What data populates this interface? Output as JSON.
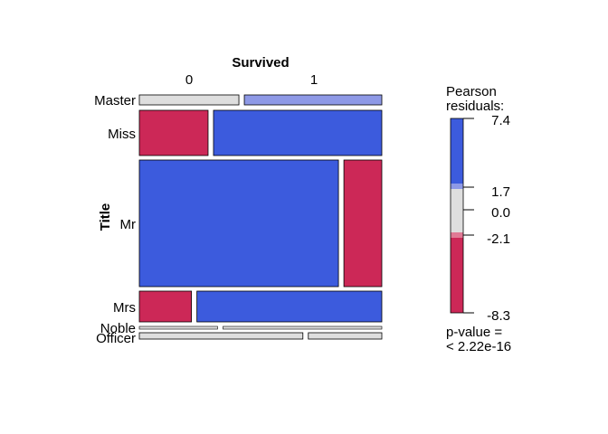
{
  "chart_data": {
    "type": "mosaic",
    "title": "",
    "xlabel": "Survived",
    "ylabel": "Title",
    "x_categories": [
      "0",
      "1"
    ],
    "y_categories": [
      "Master",
      "Miss",
      "Mr",
      "Mrs",
      "Noble",
      "Officer"
    ],
    "proportions": {
      "Master": {
        "row_share": 0.024,
        "split": [
          0.42,
          0.58
        ]
      },
      "Miss": {
        "row_share": 0.204,
        "split": [
          0.29,
          0.71
        ]
      },
      "Mr": {
        "row_share": 0.584,
        "split": [
          0.84,
          0.16
        ]
      },
      "Mrs": {
        "row_share": 0.142,
        "split": [
          0.22,
          0.78
        ]
      },
      "Noble": {
        "row_share": 0.004,
        "split": [
          0.33,
          0.67
        ]
      },
      "Officer": {
        "row_share": 0.022,
        "split": [
          0.69,
          0.31
        ]
      }
    },
    "cell_residual_class": [
      [
        "neutral",
        "moderate-positive"
      ],
      [
        "strong-negative",
        "strong-positive"
      ],
      [
        "strong-positive",
        "strong-negative"
      ],
      [
        "strong-negative",
        "strong-positive"
      ],
      [
        "neutral",
        "neutral"
      ],
      [
        "neutral",
        "neutral"
      ]
    ],
    "legend": {
      "title": "Pearson\nresiduals:",
      "ticks": [
        "7.4",
        "1.7",
        "0.0",
        "-2.1",
        "-8.3"
      ],
      "range": [
        -8.3,
        7.4
      ],
      "pvalue_line1": "p-value =",
      "pvalue_line2": "< 2.22e-16"
    },
    "colors": {
      "strong-positive": "#3c5bdd",
      "moderate-positive": "#8e99e6",
      "neutral": "#dedede",
      "moderate-negative": "#e07a95",
      "strong-negative": "#cc2857"
    }
  }
}
